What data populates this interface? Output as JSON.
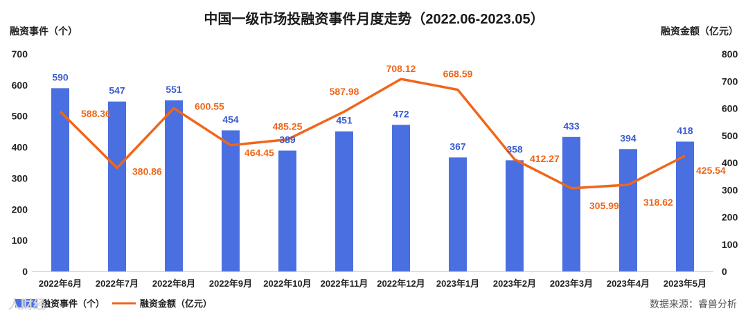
{
  "watermark": "人财经",
  "source": "数据来源：睿兽分析",
  "chart_data": {
    "type": "bar",
    "title": "中国一级市场投融资事件月度走势（2022.06-2023.05）",
    "categories": [
      "2022年6月",
      "2022年7月",
      "2022年8月",
      "2022年9月",
      "2022年10月",
      "2022年11月",
      "2022年12月",
      "2023年1月",
      "2023年2月",
      "2023年3月",
      "2023年4月",
      "2023年5月"
    ],
    "y_left_label": "融资事件（个）",
    "y_right_label": "融资金额（亿元）",
    "y_left_lim": [
      0,
      700
    ],
    "y_right_lim": [
      0,
      800
    ],
    "y_left_ticks": [
      "0",
      "100",
      "200",
      "300",
      "400",
      "500",
      "600",
      "700"
    ],
    "y_right_ticks": [
      "0",
      "100",
      "200",
      "300",
      "400",
      "500",
      "600",
      "700",
      "800"
    ],
    "series": [
      {
        "name": "融资事件（个）",
        "type": "bar",
        "axis": "left",
        "color": "#4a6fe0",
        "values": [
          590,
          547,
          551,
          454,
          389,
          451,
          472,
          367,
          358,
          433,
          394,
          418
        ],
        "labels": [
          "590",
          "547",
          "551",
          "454",
          "389",
          "451",
          "472",
          "367",
          "358",
          "433",
          "394",
          "418"
        ]
      },
      {
        "name": "融资金额（亿元）",
        "type": "line",
        "axis": "right",
        "color": "#f0661a",
        "values": [
          588.36,
          380.86,
          600.55,
          464.45,
          485.25,
          587.98,
          708.12,
          668.59,
          412.27,
          305.99,
          318.62,
          425.54
        ],
        "labels": [
          "588.36",
          "380.86",
          "600.55",
          "464.45",
          "485.25",
          "587.98",
          "708.12",
          "668.59",
          "412.27",
          "305.99",
          "318.62",
          "425.54"
        ]
      }
    ],
    "legend_position": "bottom-left",
    "grid": false
  }
}
